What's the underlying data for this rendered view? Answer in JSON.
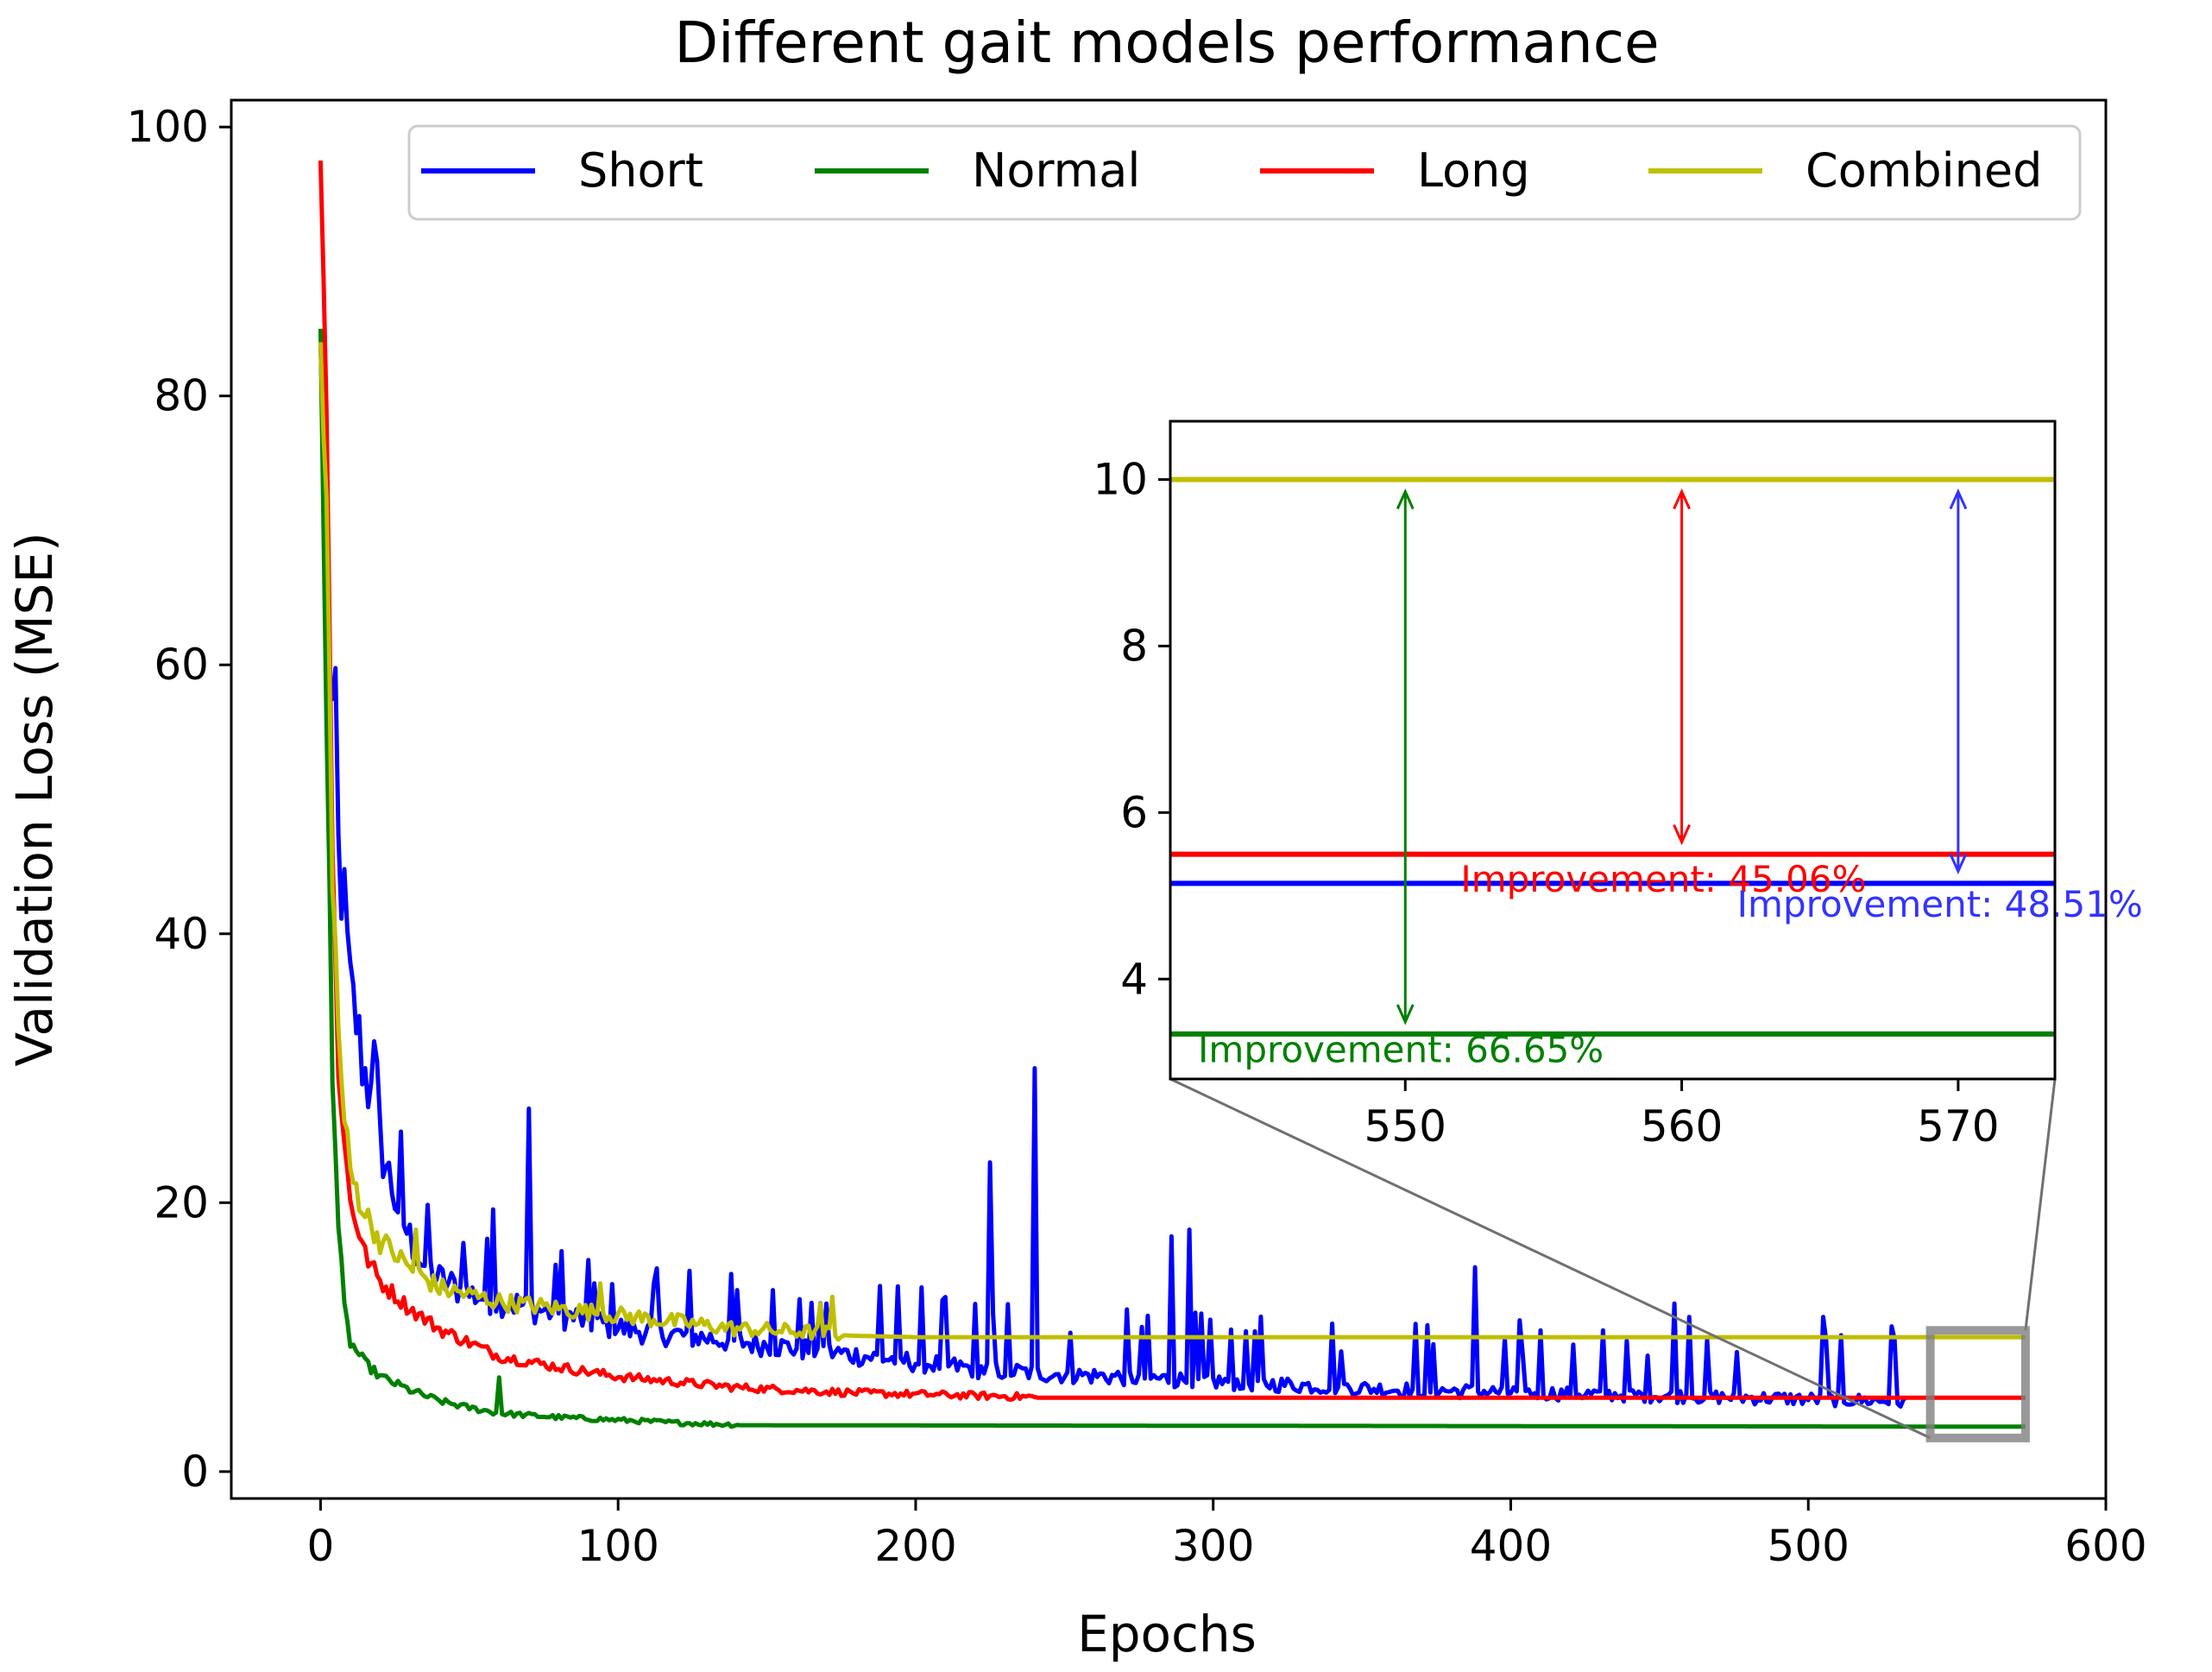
{
  "chart_data": {
    "type": "line",
    "title": "Different gait models performance",
    "xlabel": "Epochs",
    "ylabel": "Validation Loss (MSE)",
    "xlim": [
      -30,
      600
    ],
    "ylim": [
      -2,
      102
    ],
    "xticks": [
      0,
      100,
      200,
      300,
      400,
      500,
      600
    ],
    "yticks": [
      0,
      20,
      40,
      60,
      80,
      100
    ],
    "legend_position": "top",
    "colors": {
      "short": "#0000ff",
      "normal": "#008000",
      "long": "#ff0000",
      "combined": "#bfbf00"
    },
    "series": [
      {
        "name": "Short",
        "color": "#0000ff",
        "final_value": 5.15,
        "last_epoch": 533,
        "points": [
          [
            0,
            84
          ],
          [
            3,
            60
          ],
          [
            6,
            45
          ],
          [
            8,
            41
          ],
          [
            10,
            35
          ],
          [
            12,
            33
          ],
          [
            14,
            30
          ],
          [
            16,
            28
          ],
          [
            18,
            32
          ],
          [
            20,
            24
          ],
          [
            25,
            20
          ],
          [
            30,
            17
          ],
          [
            35,
            15
          ],
          [
            40,
            14
          ],
          [
            45,
            13.5
          ],
          [
            50,
            13
          ],
          [
            60,
            12.5
          ],
          [
            70,
            12
          ],
          [
            80,
            11.5
          ],
          [
            90,
            11
          ],
          [
            100,
            10.5
          ],
          [
            120,
            10
          ],
          [
            140,
            9.5
          ],
          [
            160,
            9
          ],
          [
            180,
            8.5
          ],
          [
            200,
            8
          ],
          [
            220,
            7.5
          ],
          [
            240,
            7.2
          ],
          [
            260,
            7
          ],
          [
            280,
            6.8
          ],
          [
            300,
            6.6
          ],
          [
            330,
            6.3
          ],
          [
            360,
            6
          ],
          [
            400,
            5.8
          ],
          [
            440,
            5.6
          ],
          [
            480,
            5.4
          ],
          [
            520,
            5.2
          ],
          [
            533,
            5.1
          ]
        ],
        "spikes": [
          [
            18,
            32
          ],
          [
            48,
            17
          ],
          [
            58,
            19.5
          ],
          [
            70,
            27
          ],
          [
            92,
            14
          ],
          [
            112,
            14
          ],
          [
            140,
            13.5
          ],
          [
            152,
            13.5
          ],
          [
            170,
            12.5
          ],
          [
            188,
            13.8
          ],
          [
            225,
            23
          ],
          [
            240,
            30
          ],
          [
            286,
            17.5
          ],
          [
            292,
            18
          ],
          [
            340,
            11
          ],
          [
            388,
            15.2
          ],
          [
            410,
            10.5
          ],
          [
            455,
            12.5
          ],
          [
            460,
            11.5
          ],
          [
            505,
            11.5
          ],
          [
            528,
            10.8
          ]
        ]
      },
      {
        "name": "Normal",
        "color": "#008000",
        "final_value": 3.34,
        "last_epoch": 573,
        "points": [
          [
            0,
            85
          ],
          [
            2,
            55
          ],
          [
            4,
            30
          ],
          [
            6,
            18
          ],
          [
            8,
            12
          ],
          [
            10,
            9.5
          ],
          [
            15,
            8
          ],
          [
            20,
            7
          ],
          [
            30,
            6
          ],
          [
            40,
            5.2
          ],
          [
            50,
            4.7
          ],
          [
            60,
            4.3
          ],
          [
            80,
            4
          ],
          [
            100,
            3.8
          ],
          [
            120,
            3.6
          ],
          [
            140,
            3.45
          ],
          [
            573,
            3.34
          ]
        ],
        "spikes": [
          [
            60,
            7
          ]
        ]
      },
      {
        "name": "Long",
        "color": "#ff0000",
        "final_value": 5.5,
        "last_epoch": 573,
        "points": [
          [
            0,
            97.5
          ],
          [
            2,
            80
          ],
          [
            4,
            45
          ],
          [
            6,
            30
          ],
          [
            8,
            24
          ],
          [
            10,
            20
          ],
          [
            15,
            16
          ],
          [
            20,
            14
          ],
          [
            30,
            12
          ],
          [
            40,
            10.5
          ],
          [
            50,
            9.5
          ],
          [
            60,
            8.5
          ],
          [
            80,
            7.7
          ],
          [
            100,
            7
          ],
          [
            120,
            6.6
          ],
          [
            140,
            6.2
          ],
          [
            160,
            6
          ],
          [
            180,
            5.8
          ],
          [
            200,
            5.7
          ],
          [
            220,
            5.6
          ],
          [
            240,
            5.5
          ],
          [
            573,
            5.5
          ]
        ],
        "spikes": []
      },
      {
        "name": "Combined",
        "color": "#bfbf00",
        "final_value": 10,
        "last_epoch": 573,
        "points": [
          [
            0,
            84
          ],
          [
            2,
            70
          ],
          [
            4,
            45
          ],
          [
            6,
            32
          ],
          [
            8,
            26
          ],
          [
            10,
            22
          ],
          [
            15,
            19
          ],
          [
            20,
            17
          ],
          [
            30,
            15
          ],
          [
            40,
            13.5
          ],
          [
            50,
            13
          ],
          [
            60,
            12.5
          ],
          [
            80,
            12
          ],
          [
            100,
            11.5
          ],
          [
            120,
            11
          ],
          [
            140,
            10.5
          ],
          [
            160,
            10.3
          ],
          [
            180,
            10.1
          ],
          [
            200,
            10
          ],
          [
            573,
            10
          ]
        ],
        "spikes": [
          [
            32,
            18
          ],
          [
            94,
            14
          ],
          [
            172,
            13
          ],
          [
            168,
            12.5
          ]
        ]
      }
    ],
    "zoom_region": {
      "x_range": [
        541,
        573
      ],
      "y_range": [
        2.5,
        10.5
      ]
    },
    "inset": {
      "xlim": [
        541.5,
        573.5
      ],
      "ylim": [
        2.8,
        10.7
      ],
      "xticks": [
        550,
        560,
        570
      ],
      "yticks": [
        4,
        6,
        8,
        10
      ],
      "lines": [
        {
          "series": "Combined",
          "value": 10,
          "color": "#bfbf00"
        },
        {
          "series": "Long",
          "value": 5.5,
          "color": "#ff0000"
        },
        {
          "series": "Short",
          "value": 5.15,
          "color": "#0000ff"
        },
        {
          "series": "Normal",
          "value": 3.34,
          "color": "#008000"
        }
      ],
      "arrows": [
        {
          "x": 550,
          "from": 10,
          "to": 3.34,
          "color": "#008000"
        },
        {
          "x": 560,
          "from": 10,
          "to": 5.5,
          "color": "#ff0000"
        },
        {
          "x": 570,
          "from": 10,
          "to": 5.15,
          "color": "#3333ff"
        }
      ],
      "annotations": [
        {
          "text": "Improvement: 66.65%",
          "color": "#008000",
          "x": 542.5,
          "y": 3.0
        },
        {
          "text": "Improvement: 45.06%",
          "color": "#ff0000",
          "x": 552,
          "y": 5.05
        },
        {
          "text": "Improvement: 48.51%",
          "color": "#3333ff",
          "x": 562,
          "y": 4.75
        }
      ]
    }
  }
}
